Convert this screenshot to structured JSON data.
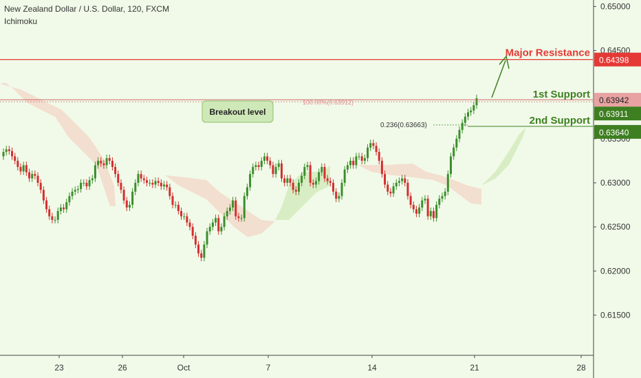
{
  "header": {
    "title": "New Zealand Dollar / U.S. Dollar, 120, FXCM",
    "indicator": "Ichimoku"
  },
  "colors": {
    "background": "#f1fae9",
    "bull": "#3b8e2c",
    "bear": "#d32f2f",
    "resistance": "#e53935",
    "support_label_1": "#e8a2a2",
    "support_label_2": "#3e7f21",
    "cloud_bear": "#f3dfcf",
    "cloud_bull": "#d9edc4"
  },
  "chart_data": {
    "type": "candlestick",
    "instrument": "New Zealand Dollar / U.S. Dollar",
    "timeframe": "120",
    "source": "FXCM",
    "ylim": [
      0.6095,
      0.6505
    ],
    "y_ticks": [
      {
        "value": 0.65,
        "label": "0.65000"
      },
      {
        "value": 0.645,
        "label": "0.64500"
      },
      {
        "value": 0.635,
        "label": "0.63500"
      },
      {
        "value": 0.63,
        "label": "0.63000"
      },
      {
        "value": 0.625,
        "label": "0.62500"
      },
      {
        "value": 0.62,
        "label": "0.62000"
      },
      {
        "value": 0.615,
        "label": "0.61500"
      }
    ],
    "x_ticks": [
      "23",
      "26",
      "Oct",
      "7",
      "14",
      "21",
      "28"
    ],
    "price_labels": [
      {
        "value": 0.64398,
        "label": "0.64398",
        "style": "resistance"
      },
      {
        "value": 0.63942,
        "label": "0.63942",
        "style": "support1"
      },
      {
        "value": 0.63911,
        "label": "0.63911",
        "style": "support2"
      },
      {
        "value": 0.6364,
        "label": "0.63640",
        "style": "support2"
      }
    ],
    "levels": [
      {
        "name": "Major Resistance",
        "value": 0.64398
      },
      {
        "name": "1st Support",
        "value": 0.63942
      },
      {
        "name": "2nd Support",
        "value": 0.6364
      }
    ],
    "fib_labels": [
      {
        "text": "100.00%(0.63912)",
        "value": 0.63912
      },
      {
        "text": "0.236(0.63663)",
        "value": 0.63663
      }
    ],
    "annotations": {
      "breakout": "Breakout level",
      "major_resistance": "Major Resistance",
      "support_1": "1st Support",
      "support_2": "2nd Support"
    },
    "candles_close": [
      0.6335,
      0.6338,
      0.6336,
      0.633,
      0.6325,
      0.6318,
      0.6313,
      0.632,
      0.6312,
      0.6305,
      0.631,
      0.6308,
      0.63,
      0.6292,
      0.628,
      0.627,
      0.6262,
      0.6258,
      0.6258,
      0.6268,
      0.6272,
      0.627,
      0.6278,
      0.6285,
      0.629,
      0.6292,
      0.6293,
      0.63,
      0.63,
      0.6296,
      0.6303,
      0.6305,
      0.632,
      0.6325,
      0.6322,
      0.632,
      0.6328,
      0.6325,
      0.6318,
      0.631,
      0.63,
      0.6292,
      0.628,
      0.6272,
      0.6275,
      0.629,
      0.63,
      0.631,
      0.6305,
      0.6303,
      0.63,
      0.63,
      0.6298,
      0.6302,
      0.63,
      0.6296,
      0.6298,
      0.6295,
      0.6285,
      0.6275,
      0.6275,
      0.6268,
      0.6262,
      0.6262,
      0.6255,
      0.625,
      0.624,
      0.623,
      0.622,
      0.6215,
      0.623,
      0.6245,
      0.625,
      0.6255,
      0.626,
      0.6245,
      0.625,
      0.6262,
      0.6268,
      0.6272,
      0.628,
      0.6262,
      0.626,
      0.626,
      0.6285,
      0.6295,
      0.631,
      0.6318,
      0.632,
      0.6318,
      0.6325,
      0.633,
      0.6325,
      0.632,
      0.631,
      0.6318,
      0.6322,
      0.6305,
      0.63,
      0.6305,
      0.63,
      0.6292,
      0.629,
      0.63,
      0.6308,
      0.6318,
      0.632,
      0.63,
      0.6298,
      0.6302,
      0.6312,
      0.6318,
      0.6305,
      0.6302,
      0.63,
      0.629,
      0.6282,
      0.6285,
      0.63,
      0.6315,
      0.632,
      0.6325,
      0.632,
      0.633,
      0.633,
      0.6325,
      0.6328,
      0.634,
      0.6345,
      0.6342,
      0.6335,
      0.6325,
      0.631,
      0.6298,
      0.629,
      0.6288,
      0.6296,
      0.63,
      0.6302,
      0.6305,
      0.63,
      0.6285,
      0.6275,
      0.627,
      0.6265,
      0.6272,
      0.628,
      0.6282,
      0.6262,
      0.6268,
      0.626,
      0.6275,
      0.6282,
      0.6285,
      0.629,
      0.631,
      0.633,
      0.634,
      0.635,
      0.636,
      0.6368,
      0.6375,
      0.638,
      0.6382,
      0.6388,
      0.6396
    ],
    "candles_open_first": 0.633
  }
}
